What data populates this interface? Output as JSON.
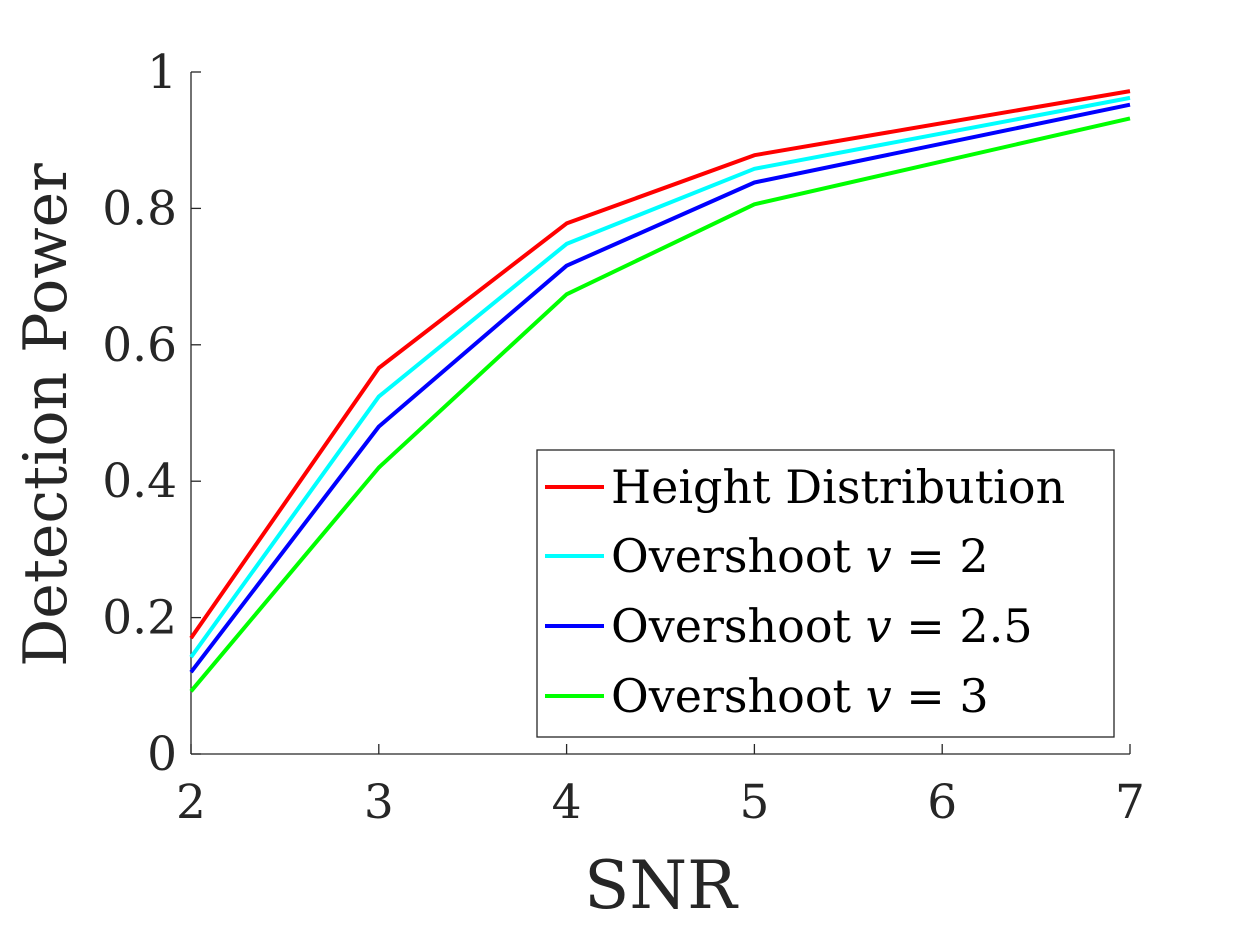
{
  "chart_data": {
    "type": "line",
    "title": "",
    "xlabel": "SNR",
    "ylabel": "Detection Power",
    "xlim": [
      2,
      7
    ],
    "ylim": [
      0,
      1
    ],
    "x": [
      2,
      3,
      4,
      5,
      6,
      7
    ],
    "x_ticks": [
      "2",
      "3",
      "4",
      "5",
      "6",
      "7"
    ],
    "y_ticks": [
      "0",
      "0.2",
      "0.4",
      "0.6",
      "0.8",
      "1"
    ],
    "grid": false,
    "legend_position": "bottom-right",
    "series": [
      {
        "name": "Height Distribution",
        "color": "#ff0000",
        "x": [
          2,
          3,
          4,
          5,
          7
        ],
        "values": [
          0.17,
          0.566,
          0.778,
          0.878,
          0.972
        ]
      },
      {
        "name": "Overshoot v = 2",
        "name_prefix": "Overshoot ",
        "name_var": "v",
        "name_suffix": " = 2",
        "color": "#00ffff",
        "x": [
          2,
          3,
          4,
          5,
          7
        ],
        "values": [
          0.142,
          0.524,
          0.748,
          0.858,
          0.962
        ]
      },
      {
        "name": "Overshoot v = 2.5",
        "name_prefix": "Overshoot ",
        "name_var": "v",
        "name_suffix": " = 2.5",
        "color": "#0000ff",
        "x": [
          2,
          3,
          4,
          5,
          7
        ],
        "values": [
          0.12,
          0.48,
          0.716,
          0.838,
          0.952
        ]
      },
      {
        "name": "Overshoot v = 3",
        "name_prefix": "Overshoot ",
        "name_var": "v",
        "name_suffix": " = 3",
        "color": "#00ff00",
        "x": [
          2,
          3,
          4,
          5,
          7
        ],
        "values": [
          0.092,
          0.42,
          0.674,
          0.806,
          0.932
        ]
      }
    ]
  }
}
